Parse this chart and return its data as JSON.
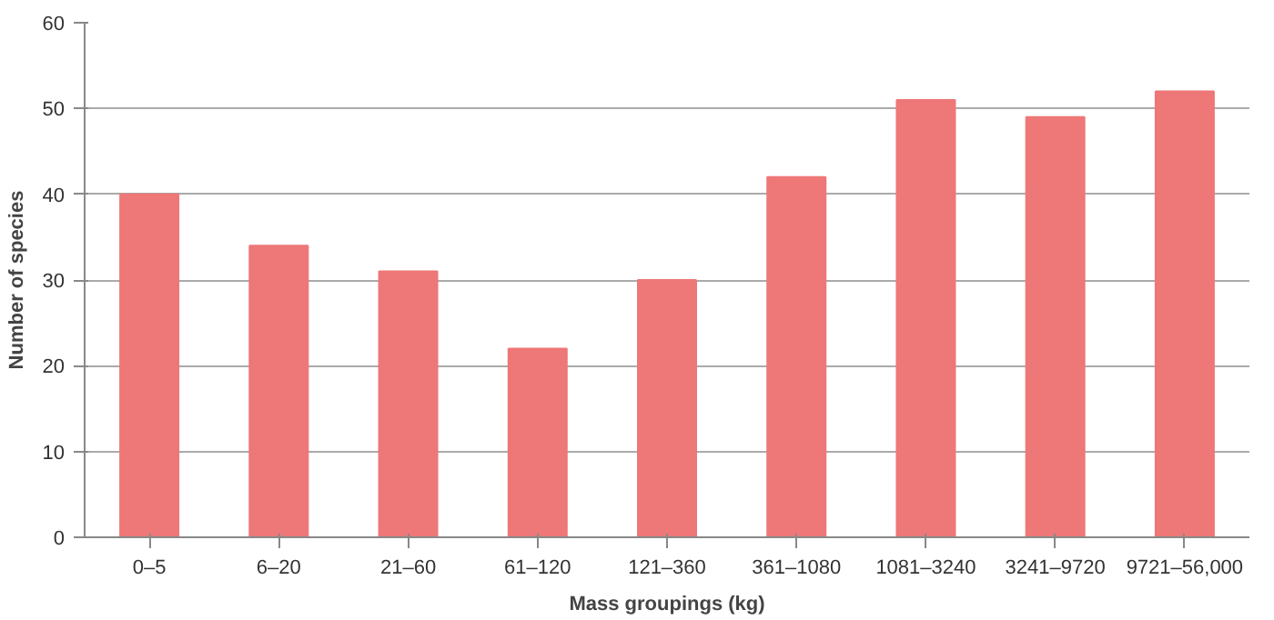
{
  "chart_data": {
    "type": "bar",
    "xlabel": "Mass groupings (kg)",
    "ylabel": "Number of species",
    "categories": [
      "0–5",
      "6–20",
      "21–60",
      "61–120",
      "121–360",
      "361–1080",
      "1081–3240",
      "3241–9720",
      "9721–56,000"
    ],
    "values": [
      40,
      34,
      31,
      22,
      30,
      42,
      51,
      49,
      52
    ],
    "color": "#ee7777",
    "ylim": [
      0,
      60
    ],
    "yticks": [
      0,
      10,
      20,
      30,
      40,
      50,
      60
    ],
    "grid": "y"
  }
}
